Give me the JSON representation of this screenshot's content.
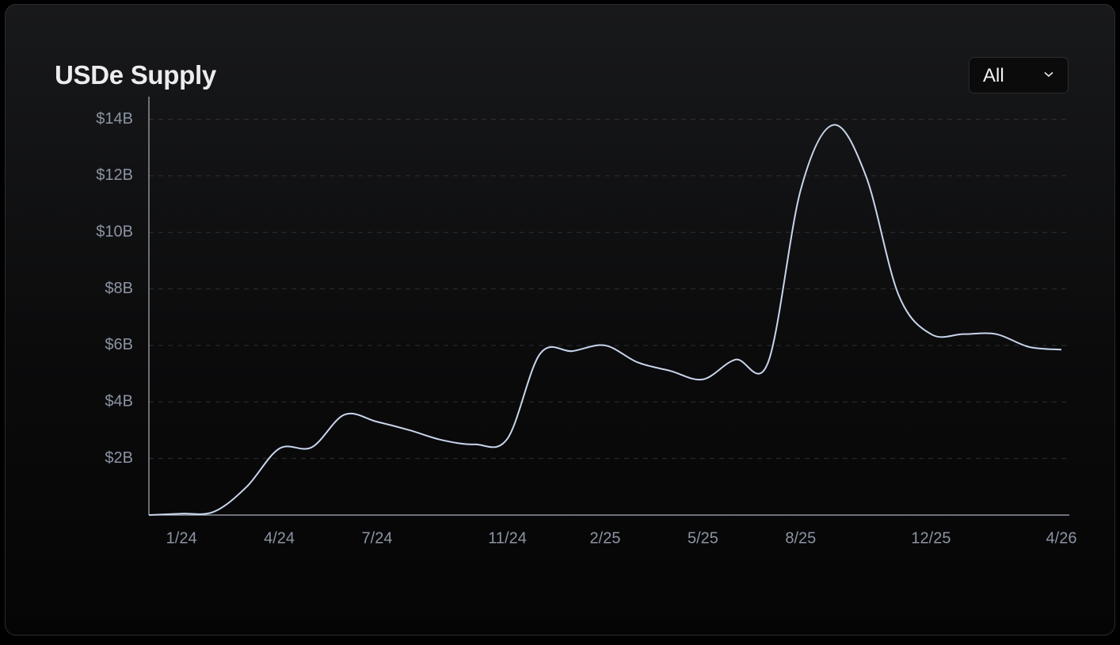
{
  "chart_data": {
    "type": "line",
    "title": "USDe Supply",
    "x": [
      "12/23",
      "1/24",
      "2/24",
      "3/24",
      "4/24",
      "5/24",
      "6/24",
      "7/24",
      "8/24",
      "9/24",
      "10/24",
      "11/24",
      "12/24",
      "1/25",
      "2/25",
      "3/25",
      "4/25",
      "5/25",
      "6/25",
      "7/25",
      "8/25",
      "9/25",
      "10/25",
      "11/25",
      "12/25",
      "1/26",
      "2/26",
      "3/26",
      "4/26"
    ],
    "series": [
      {
        "name": "USDe Supply",
        "color": "#c9d5ec",
        "values": [
          0,
          0.05,
          0.12,
          1.0,
          2.35,
          2.4,
          3.55,
          3.3,
          3.0,
          2.65,
          2.5,
          2.7,
          5.7,
          5.8,
          6.0,
          5.4,
          5.1,
          4.8,
          5.5,
          5.4,
          11.5,
          13.8,
          12.0,
          7.8,
          6.4,
          6.4,
          6.4,
          5.95,
          5.85
        ]
      }
    ],
    "xticks": [
      "1/24",
      "4/24",
      "7/24",
      "11/24",
      "2/25",
      "5/25",
      "8/25",
      "12/25",
      "4/26"
    ],
    "ylim": [
      0,
      14.8
    ],
    "yticks": [
      {
        "value": 2,
        "label": "$2B"
      },
      {
        "value": 4,
        "label": "$4B"
      },
      {
        "value": 6,
        "label": "$6B"
      },
      {
        "value": 8,
        "label": "$8B"
      },
      {
        "value": 10,
        "label": "$10B"
      },
      {
        "value": 12,
        "label": "$12B"
      },
      {
        "value": 14,
        "label": "$14B"
      }
    ],
    "grid": true
  },
  "range_selector": "All"
}
